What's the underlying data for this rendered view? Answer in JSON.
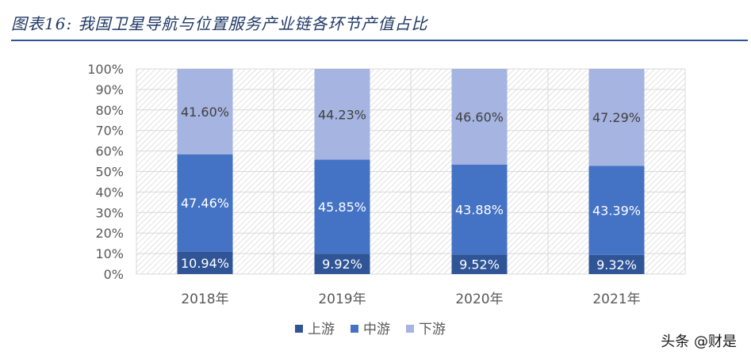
{
  "figure_title": "图表16:  我国卫星导航与位置服务产业链各环节产值占比",
  "watermark": "头条 @财是",
  "chart_data": {
    "type": "bar",
    "stacked": true,
    "percent": true,
    "categories": [
      "2018年",
      "2019年",
      "2020年",
      "2021年"
    ],
    "series": [
      {
        "name": "上游",
        "values": [
          10.94,
          9.92,
          9.52,
          9.32
        ],
        "labels": [
          "10.94%",
          "9.92%",
          "9.52%",
          "9.32%"
        ],
        "color": "#2f5597"
      },
      {
        "name": "中游",
        "values": [
          47.46,
          45.85,
          43.88,
          43.39
        ],
        "labels": [
          "47.46%",
          "45.85%",
          "43.88%",
          "43.39%"
        ],
        "color": "#4472c4"
      },
      {
        "name": "下游",
        "values": [
          41.6,
          44.23,
          46.6,
          47.29
        ],
        "labels": [
          "41.60%",
          "44.23%",
          "46.60%",
          "47.29%"
        ],
        "color": "#a5b4e0"
      }
    ],
    "yticks": [
      "0%",
      "10%",
      "20%",
      "30%",
      "40%",
      "50%",
      "60%",
      "70%",
      "80%",
      "90%",
      "100%"
    ],
    "ylim": [
      0,
      100
    ],
    "grid": true,
    "legend": "bottom"
  }
}
